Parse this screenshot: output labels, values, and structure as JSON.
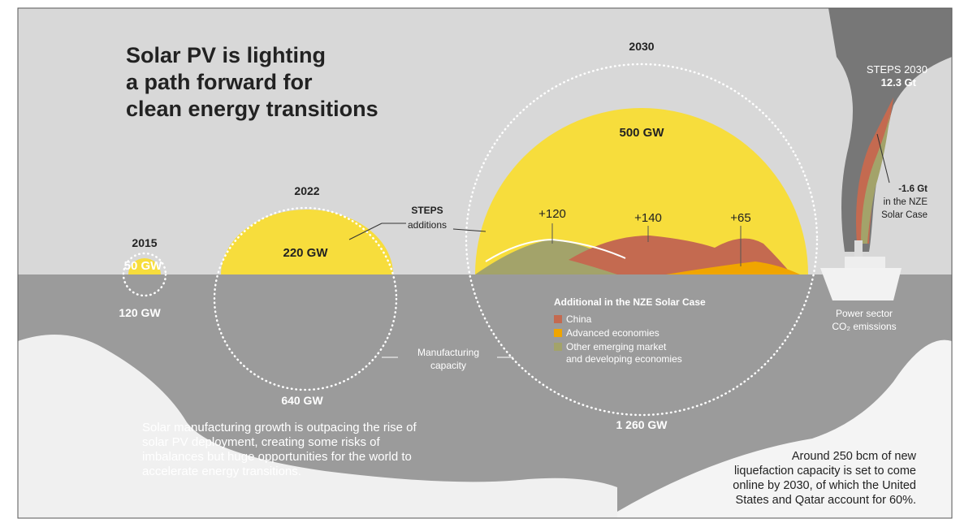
{
  "title": [
    "Solar PV is lighting",
    "a path forward for",
    "clean energy transitions"
  ],
  "years": [
    {
      "year": "2015",
      "deployment": "50 GW",
      "manufacturing": "120 GW"
    },
    {
      "year": "2022",
      "deployment": "220 GW",
      "manufacturing": "640 GW"
    },
    {
      "year": "2030",
      "deployment": "500 GW",
      "manufacturing": "1 260 GW"
    }
  ],
  "steps_label": [
    "STEPS",
    "additions"
  ],
  "additions": [
    "+120",
    "+140",
    "+65"
  ],
  "legend": {
    "title": "Additional in the NZE Solar Case",
    "items": [
      [
        "China"
      ],
      [
        "Advanced economies"
      ],
      [
        "Other emerging market",
        "and developing economies"
      ]
    ]
  },
  "manufacturing_label": [
    "Manufacturing",
    "capacity"
  ],
  "emissions": {
    "steps": [
      "STEPS 2030",
      "12.3 Gt"
    ],
    "nze": [
      "-1.6 Gt",
      "in the NZE",
      "Solar Case"
    ],
    "label": [
      "Power sector",
      "CO₂ emissions"
    ]
  },
  "note_left": [
    "Solar manufacturing growth is outpacing the rise of",
    "solar PV deployment, creating some risks of",
    "imbalances but huge opportunities for the world to",
    "accelerate energy transitions."
  ],
  "note_right": [
    "Around 250 bcm of new",
    "liquefaction capacity is set to come",
    "online by 2030, of which the United",
    "States and Qatar account for 60%."
  ]
}
